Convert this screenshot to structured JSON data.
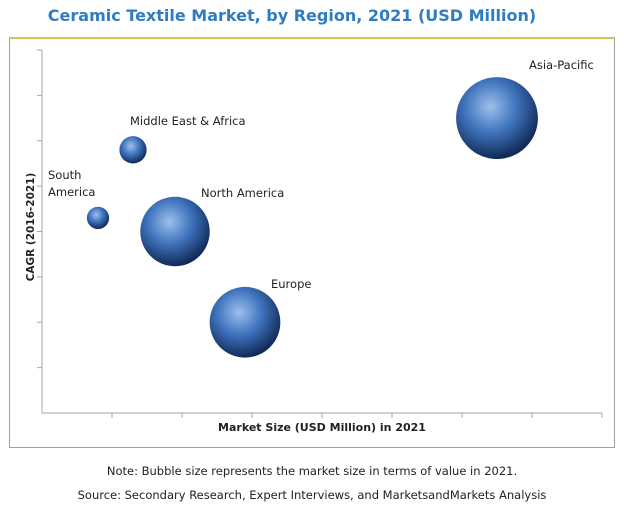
{
  "chart_data": {
    "type": "scatter",
    "title": "Ceramic Textile Market, by Region, 2021 (USD Million)",
    "xlabel": "Market Size (USD Million) in 2021",
    "ylabel": "CAGR (2016-2021)",
    "xlim": [
      0,
      8
    ],
    "ylim": [
      0,
      8
    ],
    "grid": false,
    "series": [
      {
        "name": "Asia-Pacific",
        "x": 6.5,
        "y": 6.5,
        "size": 6.6
      },
      {
        "name": "Middle East & Africa",
        "x": 1.3,
        "y": 5.8,
        "size": 2.2
      },
      {
        "name": "North America",
        "x": 1.9,
        "y": 4.0,
        "size": 5.6
      },
      {
        "name": "South America",
        "x": 0.8,
        "y": 4.3,
        "size": 1.8
      },
      {
        "name": "Europe",
        "x": 2.9,
        "y": 2.0,
        "size": 5.7
      }
    ],
    "point_labels": [
      {
        "series": "Asia-Pacific",
        "lines": [
          "Asia-Pacific"
        ]
      },
      {
        "series": "Middle East & Africa",
        "lines": [
          "Middle East & Africa"
        ]
      },
      {
        "series": "North America",
        "lines": [
          "North America"
        ]
      },
      {
        "series": "South America",
        "lines": [
          "South",
          "America"
        ]
      },
      {
        "series": "Europe",
        "lines": [
          "Europe"
        ]
      }
    ],
    "colors": {
      "bubble_light": "#9cc0ec",
      "bubble_mid": "#3f73bd",
      "bubble_dark": "#112a56",
      "axis": "#a6a6a6"
    }
  },
  "notes": {
    "size_note": "Note: Bubble size represents the market size in terms of value in 2021.",
    "source": "Source: Secondary Research, Expert Interviews, and MarketsandMarkets Analysis"
  }
}
